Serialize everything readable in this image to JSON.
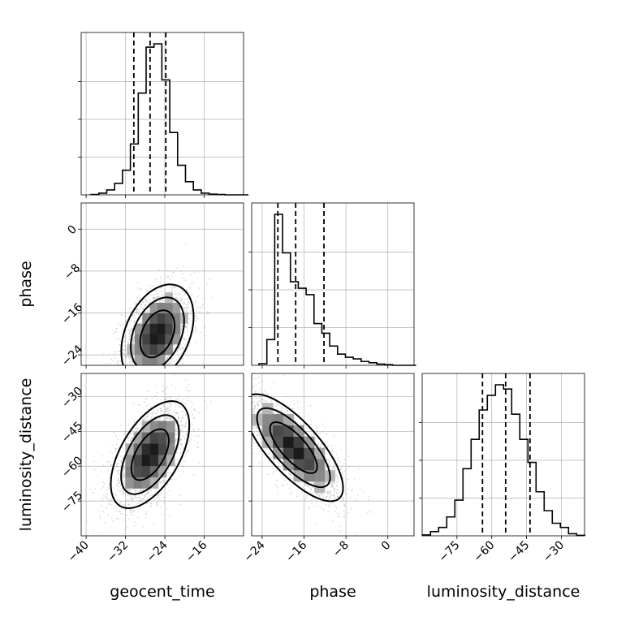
{
  "chart_data": {
    "type": "corner",
    "parameters": [
      "geocent_time",
      "phase",
      "luminosity_distance"
    ],
    "ranges": {
      "geocent_time": [
        -41,
        -8
      ],
      "phase": [
        -26,
        5
      ],
      "luminosity_distance": [
        -90,
        -20
      ]
    },
    "ticks": {
      "geocent_time": [
        -40,
        -32,
        -24,
        -16
      ],
      "phase": [
        -24,
        -16,
        -8,
        0
      ],
      "luminosity_distance": [
        -75,
        -60,
        -45,
        -30
      ]
    },
    "tick_labels": {
      "geocent_time": [
        "−40",
        "−32",
        "−24",
        "−16"
      ],
      "phase": [
        "−24",
        "−16",
        "−8",
        "0"
      ],
      "luminosity_distance": [
        "−75",
        "−60",
        "−45",
        "−30"
      ]
    },
    "quantiles": {
      "geocent_time": [
        -30.3,
        -27.0,
        -23.8
      ],
      "phase": [
        -21.0,
        -17.6,
        -12.2
      ],
      "luminosity_distance": [
        -64.0,
        -54.0,
        -43.5
      ]
    },
    "histograms": {
      "geocent_time": {
        "edges": [
          -39.0,
          -37.4,
          -35.8,
          -34.2,
          -32.6,
          -31.0,
          -29.4,
          -27.8,
          -26.2,
          -24.6,
          -23.0,
          -21.4,
          -19.8,
          -18.2,
          -16.6,
          -15.0,
          -13.4,
          -11.8,
          -10.2,
          -8.6,
          -7.0
        ],
        "counts": [
          0.1,
          0.5,
          1.5,
          3.5,
          7.5,
          15.5,
          31.0,
          45.0,
          46.0,
          35.0,
          19.0,
          9.0,
          4.0,
          1.5,
          0.5,
          0.2,
          0.1,
          0,
          0,
          0
        ]
      },
      "phase": {
        "edges": [
          -24.6,
          -23.1,
          -21.6,
          -20.1,
          -18.6,
          -17.1,
          -15.6,
          -14.1,
          -12.6,
          -11.1,
          -9.6,
          -8.1,
          -6.6,
          -5.1,
          -3.6,
          -2.1,
          -0.6,
          0.9,
          2.4,
          3.9,
          5.4
        ],
        "counts": [
          0.5,
          8.0,
          47.0,
          35.0,
          26.0,
          24.0,
          22.0,
          13.0,
          10.0,
          6.0,
          3.5,
          2.5,
          2.0,
          1.2,
          0.8,
          0.4,
          0.2,
          0,
          0,
          0
        ]
      },
      "luminosity_distance": {
        "edges": [
          -89.9,
          -86.4,
          -82.9,
          -79.4,
          -75.9,
          -72.4,
          -68.9,
          -65.4,
          -61.9,
          -58.4,
          -54.9,
          -51.4,
          -47.9,
          -44.4,
          -40.9,
          -37.4,
          -33.9,
          -30.4,
          -26.9,
          -23.4,
          -19.9
        ],
        "counts": [
          0.2,
          1.0,
          2.0,
          4.5,
          8.5,
          16.0,
          23.0,
          30.0,
          33.5,
          36.0,
          35.0,
          29.0,
          23.0,
          17.5,
          10.5,
          6.0,
          3.0,
          2.0,
          0.5,
          0.1
        ]
      }
    },
    "pairs": [
      {
        "x": "geocent_time",
        "y": "phase",
        "center": [
          -25.5,
          -20.0
        ],
        "rho": 0.35,
        "sigma": [
          3.5,
          4.5
        ]
      },
      {
        "x": "geocent_time",
        "y": "luminosity_distance",
        "center": [
          -27.0,
          -55.0
        ],
        "rho": 0.55,
        "sigma": [
          3.8,
          11.0
        ]
      },
      {
        "x": "phase",
        "y": "luminosity_distance",
        "center": [
          -18.0,
          -52.0
        ],
        "rho": -0.75,
        "sigma": [
          4.5,
          11.0
        ]
      }
    ],
    "contour_levels": [
      "1sigma",
      "1.5sigma",
      "2sigma"
    ],
    "grid": true,
    "colors": {
      "line": "#000000",
      "grid": "#b0b0b0",
      "density": "#000000",
      "points": "#9a9a9a"
    }
  }
}
